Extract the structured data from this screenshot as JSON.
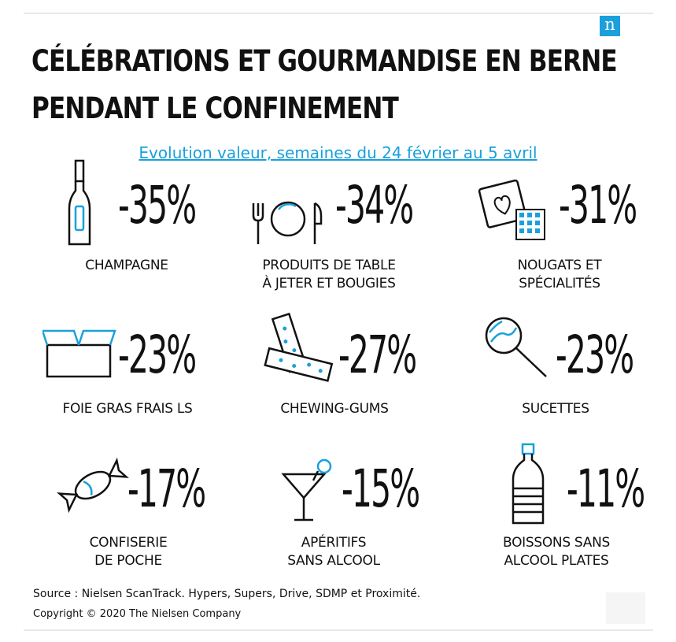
{
  "brand": {
    "logo_letter": "n",
    "accent_color": "#1aa0dc"
  },
  "title": {
    "line1": "CÉLÉBRATIONS ET GOURMANDISE EN BERNE",
    "line2": "PENDANT LE CONFINEMENT"
  },
  "subtitle": "Evolution valeur, semaines du 24 février au 5 avril",
  "items": [
    {
      "icon": "champagne-bottle-icon",
      "value": "-35%",
      "label_lines": [
        "CHAMPAGNE"
      ]
    },
    {
      "icon": "tableware-icon",
      "value": "-34%",
      "label_lines": [
        "PRODUITS DE TABLE",
        "À JETER ET BOUGIES"
      ]
    },
    {
      "icon": "nougat-box-icon",
      "value": "-31%",
      "label_lines": [
        "NOUGATS ET",
        "SPÉCIALITÉS"
      ]
    },
    {
      "icon": "open-box-icon",
      "value": "-23%",
      "label_lines": [
        "FOIE GRAS FRAIS LS"
      ]
    },
    {
      "icon": "chewing-gum-icon",
      "value": "-27%",
      "label_lines": [
        "CHEWING-GUMS"
      ]
    },
    {
      "icon": "lollipop-icon",
      "value": "-23%",
      "label_lines": [
        "SUCETTES"
      ]
    },
    {
      "icon": "candy-icon",
      "value": "-17%",
      "label_lines": [
        "CONFISERIE",
        "DE POCHE"
      ]
    },
    {
      "icon": "cocktail-glass-icon",
      "value": "-15%",
      "label_lines": [
        "APÉRITIFS",
        "SANS ALCOOL"
      ]
    },
    {
      "icon": "water-bottle-icon",
      "value": "-11%",
      "label_lines": [
        "BOISSONS SANS",
        "ALCOOL PLATES"
      ]
    }
  ],
  "footer": {
    "source": "Source : Nielsen ScanTrack. Hypers, Supers, Drive, SDMP et Proximité.",
    "copyright": "Copyright © 2020 The Nielsen Company"
  }
}
